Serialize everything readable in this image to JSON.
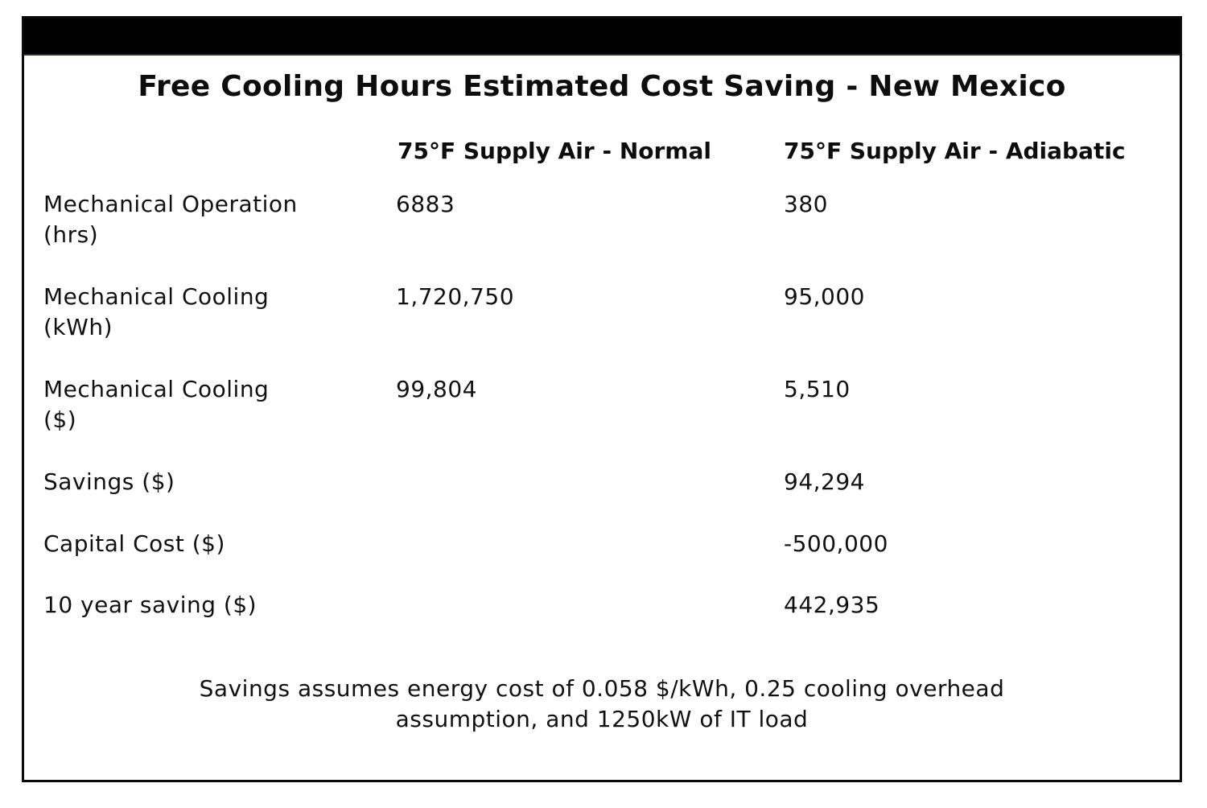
{
  "title": "Free Cooling Hours Estimated Cost Saving - New Mexico",
  "columns": {
    "normal": "75°F Supply Air - Normal",
    "adiabatic": "75°F Supply Air - Adiabatic"
  },
  "rows": [
    {
      "label_line1": "Mechanical Operation",
      "label_line2": "(hrs)",
      "normal": "6883",
      "adiabatic": "380"
    },
    {
      "label_line1": "Mechanical Cooling",
      "label_line2": "(kWh)",
      "normal": "1,720,750",
      "adiabatic": "95,000"
    },
    {
      "label_line1": "Mechanical Cooling",
      "label_line2": "($)",
      "normal": "99,804",
      "adiabatic": "5,510"
    },
    {
      "label_line1": "Savings ($)",
      "label_line2": "",
      "normal": "",
      "adiabatic": "94,294"
    },
    {
      "label_line1": "Capital Cost ($)",
      "label_line2": "",
      "normal": "",
      "adiabatic": "-500,000"
    },
    {
      "label_line1": "10 year saving ($)",
      "label_line2": "",
      "normal": "",
      "adiabatic": "442,935"
    }
  ],
  "footnote": {
    "line1": "Savings assumes energy cost of 0.058 $/kWh, 0.25 cooling overhead",
    "line2": "assumption, and 1250kW of IT load"
  },
  "colors": {
    "header_bar": "#000000",
    "border": "#0a0a0a",
    "background": "#ffffff"
  }
}
